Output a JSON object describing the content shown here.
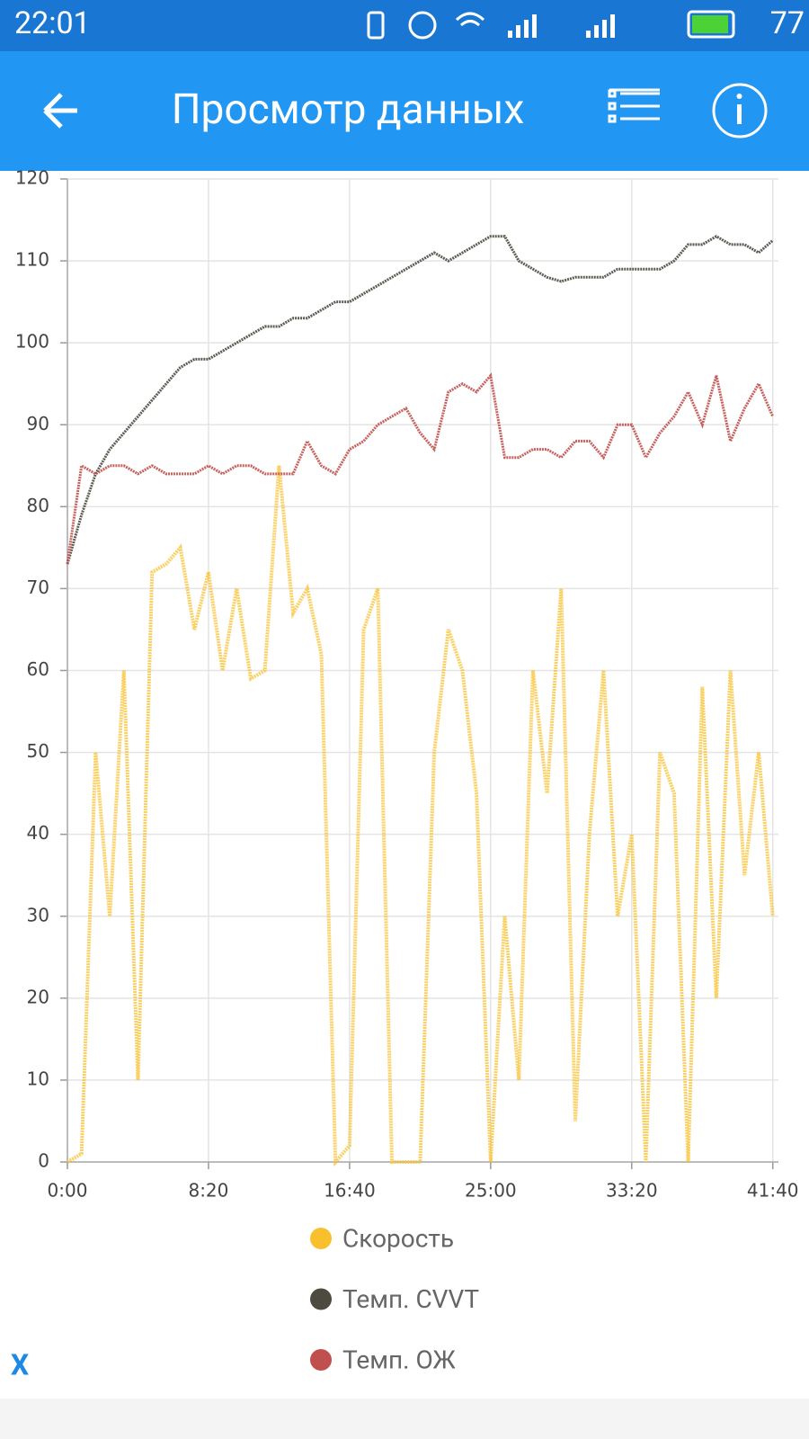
{
  "status_bar": {
    "time": "22:01",
    "battery": "77"
  },
  "app_bar": {
    "title": "Просмотр данных"
  },
  "close_button": "X",
  "chart_data": {
    "type": "line",
    "grid": true,
    "x": [
      0,
      50,
      100,
      150,
      200,
      250,
      300,
      350,
      400,
      450,
      500,
      550,
      600,
      650,
      700,
      750,
      800,
      850,
      900,
      950,
      1000,
      1050,
      1100,
      1150,
      1200,
      1250,
      1300,
      1350,
      1400,
      1450,
      1500,
      1550,
      1600,
      1650,
      1700,
      1750,
      1800,
      1850,
      1900,
      1950,
      2000,
      2050,
      2100,
      2150,
      2200,
      2250,
      2300,
      2350,
      2400,
      2450,
      2500
    ],
    "xlim": [
      0,
      2520
    ],
    "xticks": [
      {
        "value": 0,
        "label": "0:00"
      },
      {
        "value": 500,
        "label": "8:20"
      },
      {
        "value": 1000,
        "label": "16:40"
      },
      {
        "value": 1500,
        "label": "25:00"
      },
      {
        "value": 2000,
        "label": "33:20"
      },
      {
        "value": 2500,
        "label": "41:40"
      }
    ],
    "ylim": [
      0,
      120
    ],
    "yticks": [
      0,
      10,
      20,
      30,
      40,
      50,
      60,
      70,
      80,
      90,
      100,
      110,
      120
    ],
    "series": [
      {
        "name": "Скорость",
        "color": "#f9c02e",
        "values": [
          0,
          1,
          50,
          30,
          60,
          10,
          72,
          73,
          75,
          65,
          72,
          60,
          70,
          59,
          60,
          85,
          67,
          70,
          62,
          0,
          2,
          65,
          70,
          0,
          0,
          0,
          50,
          65,
          60,
          45,
          0,
          30,
          10,
          60,
          45,
          70,
          5,
          40,
          60,
          30,
          40,
          0,
          50,
          45,
          0,
          58,
          20,
          60,
          35,
          50,
          30
        ]
      },
      {
        "name": "Темп. CVVT",
        "color": "#4d4a3f",
        "values": [
          73,
          79,
          84,
          87,
          89,
          91,
          93,
          95,
          97,
          98,
          98,
          99,
          100,
          101,
          102,
          102,
          103,
          103,
          104,
          105,
          105,
          106,
          107,
          108,
          109,
          110,
          111,
          110,
          111,
          112,
          113,
          113,
          110,
          109,
          108,
          107.5,
          108,
          108,
          108,
          109,
          109,
          109,
          109,
          110,
          112,
          112,
          113,
          112,
          112,
          111,
          112.5
        ]
      },
      {
        "name": "Темп. ОЖ",
        "color": "#c0504d",
        "values": [
          73,
          85,
          84,
          85,
          85,
          84,
          85,
          84,
          84,
          84,
          85,
          84,
          85,
          85,
          84,
          84,
          84,
          88,
          85,
          84,
          87,
          88,
          90,
          91,
          92,
          89,
          87,
          94,
          95,
          94,
          96,
          86,
          86,
          87,
          87,
          86,
          88,
          88,
          86,
          90,
          90,
          86,
          89,
          91,
          94,
          90,
          96,
          88,
          92,
          95,
          91
        ]
      }
    ]
  }
}
